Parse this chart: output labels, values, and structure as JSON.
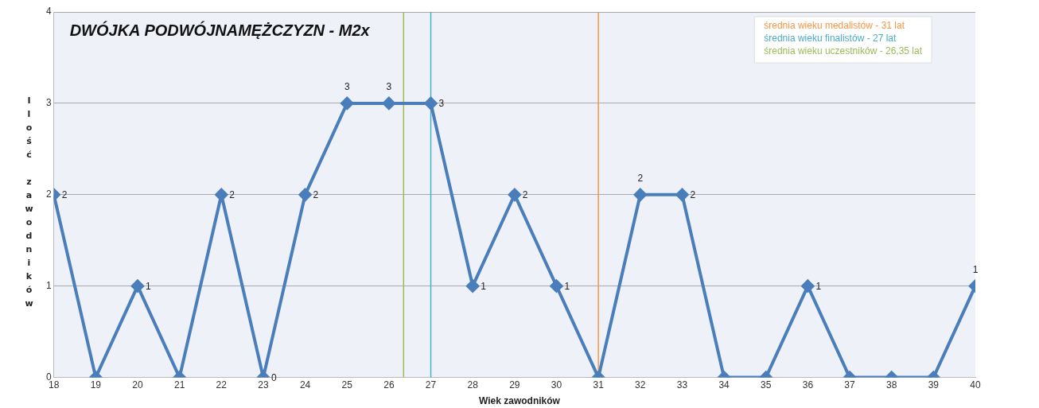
{
  "chart_data": {
    "type": "line",
    "title": "DWÓJKA PODWÓJNAMĘŻCZYZN - M2x",
    "xlabel": "Wiek zawodników",
    "ylabel": "Ilość zawodników",
    "x": [
      18,
      19,
      20,
      21,
      22,
      23,
      24,
      25,
      26,
      27,
      28,
      29,
      30,
      31,
      32,
      33,
      34,
      35,
      36,
      37,
      38,
      39,
      40
    ],
    "series": [
      {
        "color": "#4a7ebb",
        "values": [
          2,
          0,
          1,
          0,
          2,
          0,
          2,
          3,
          3,
          3,
          1,
          2,
          1,
          0,
          2,
          2,
          0,
          0,
          1,
          0,
          0,
          0,
          1
        ],
        "value_labels": [
          "2",
          null,
          "1",
          null,
          "2",
          "0",
          "2",
          "3",
          "3",
          "3",
          "1",
          "2",
          "1",
          null,
          "2",
          "2",
          null,
          null,
          "1",
          null,
          null,
          null,
          "1"
        ]
      }
    ],
    "xlim": [
      18,
      40
    ],
    "xticks": [
      18,
      19,
      20,
      21,
      22,
      23,
      24,
      25,
      26,
      27,
      28,
      29,
      30,
      31,
      32,
      33,
      34,
      35,
      36,
      37,
      38,
      39,
      40
    ],
    "ylim": [
      0,
      4
    ],
    "yticks": [
      0,
      1,
      2,
      3,
      4
    ],
    "grid": "y",
    "marker": "diamond",
    "line_style": "solid",
    "legend": "top right",
    "ref_lines": [
      {
        "axis": "x",
        "value": 31,
        "label": "średnia wieku medalistów - 31 lat",
        "color": "#f79646"
      },
      {
        "axis": "x",
        "value": 27,
        "label": "średnia wieku finalistów - 27 lat",
        "color": "#4bacc6"
      },
      {
        "axis": "x",
        "value": 26.35,
        "label": "średnia wieku uczestników - 26,35 lat",
        "color": "#9bbb59"
      }
    ]
  }
}
